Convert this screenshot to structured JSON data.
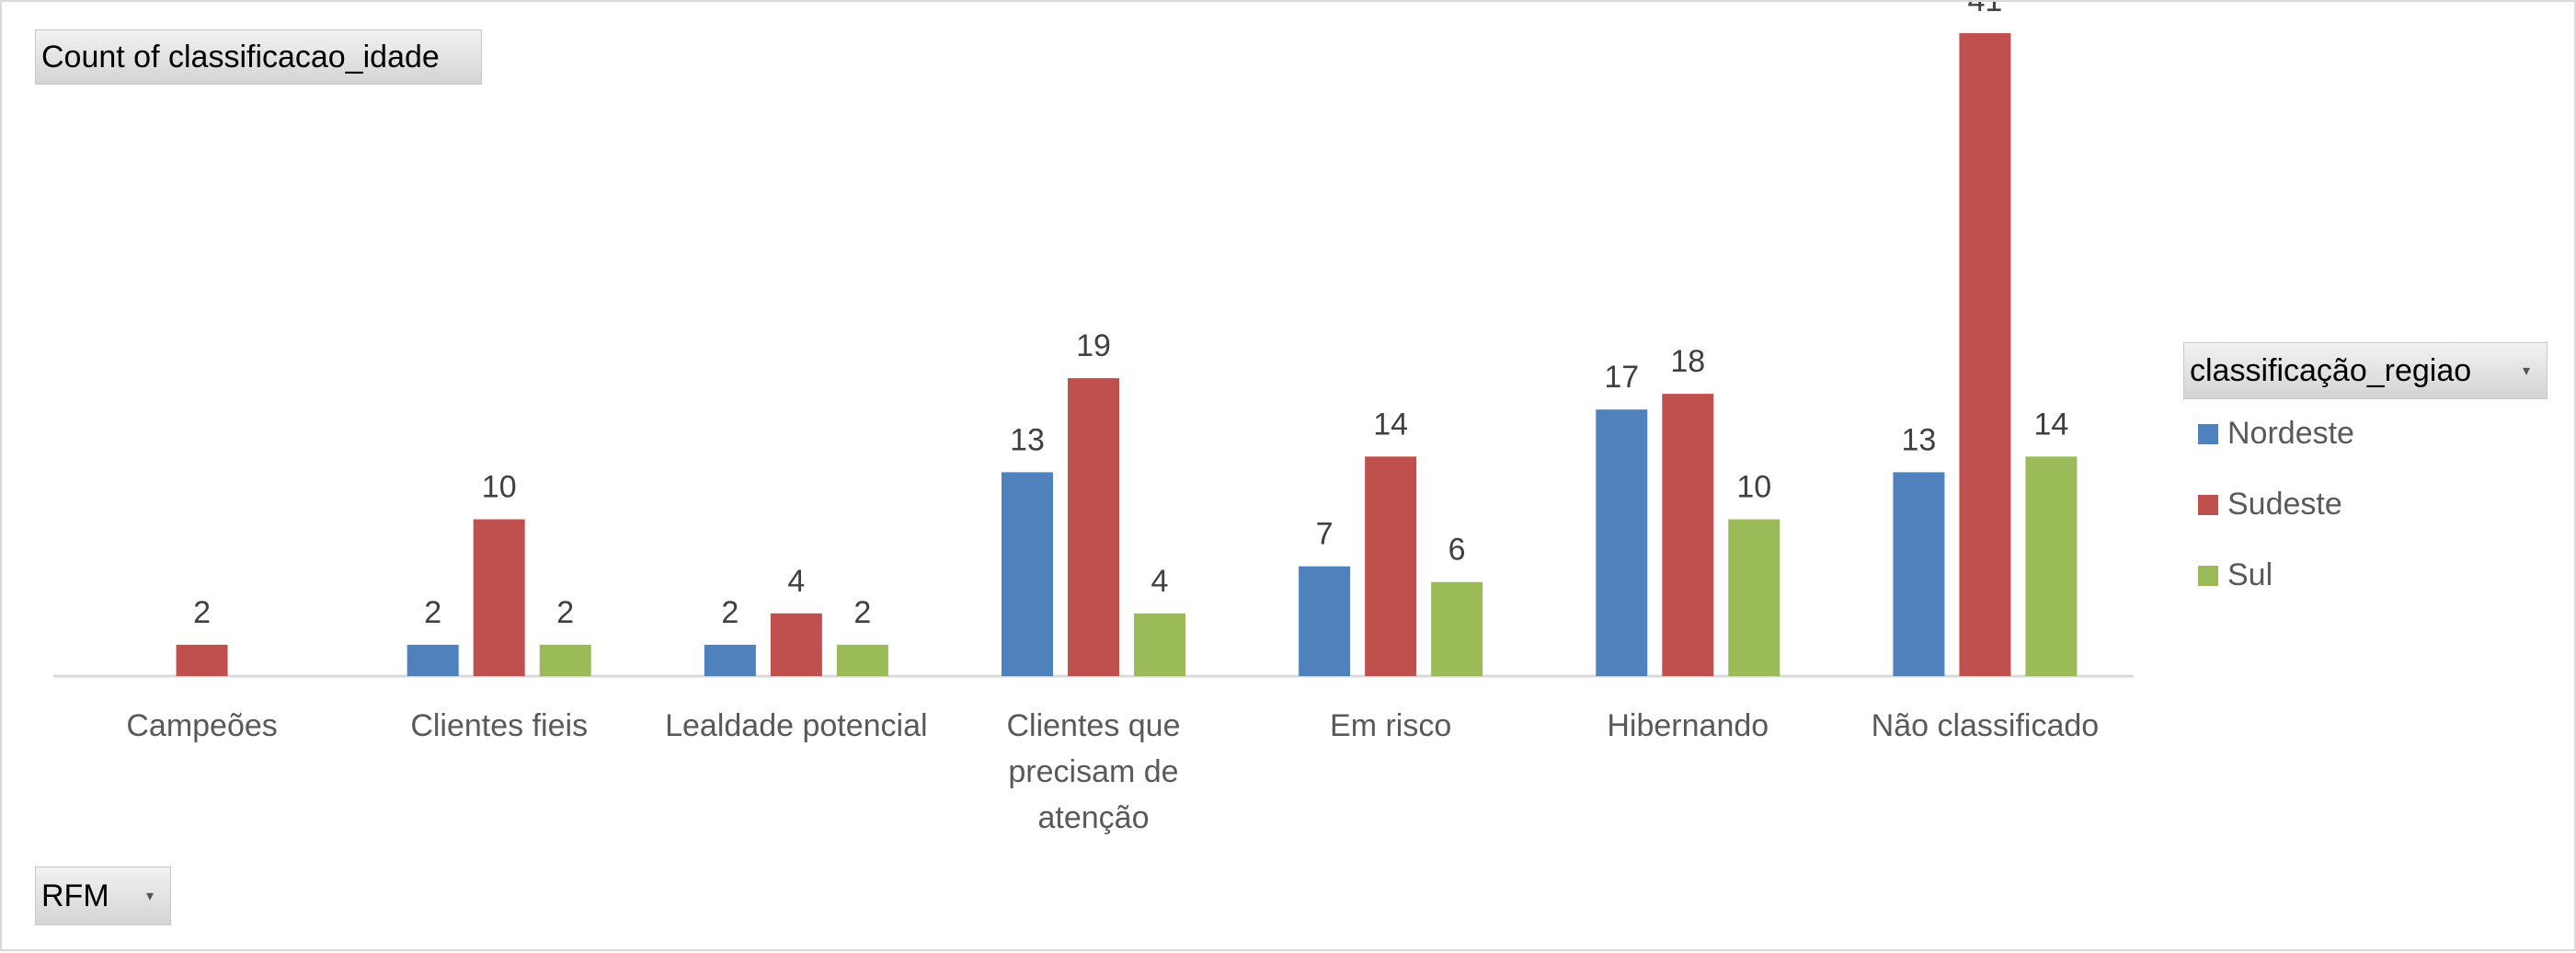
{
  "field_buttons": {
    "values": "Count of classificacao_idade",
    "rows": "RFM",
    "legend": "classificação_regiao"
  },
  "icons": {
    "dropdown": "chevron-down-icon"
  },
  "chart_data": {
    "type": "bar",
    "title": "",
    "xlabel": "",
    "ylabel": "",
    "ylim": [
      0,
      42
    ],
    "grid": false,
    "legend_position": "right",
    "categories": [
      [
        "Campeões"
      ],
      [
        "Clientes fieis"
      ],
      [
        "Lealdade potencial"
      ],
      [
        "Clientes que",
        "precisam de",
        "atenção"
      ],
      [
        "Em risco"
      ],
      [
        "Hibernando"
      ],
      [
        "Não classificado"
      ]
    ],
    "series": [
      {
        "name": "Nordeste",
        "color": "#4f81bd",
        "values": [
          null,
          2,
          2,
          13,
          7,
          17,
          13
        ]
      },
      {
        "name": "Sudeste",
        "color": "#c0504d",
        "values": [
          2,
          10,
          4,
          19,
          14,
          18,
          41
        ]
      },
      {
        "name": "Sul",
        "color": "#9bbb59",
        "values": [
          null,
          2,
          2,
          4,
          6,
          10,
          14
        ]
      }
    ],
    "data_labels": true
  }
}
